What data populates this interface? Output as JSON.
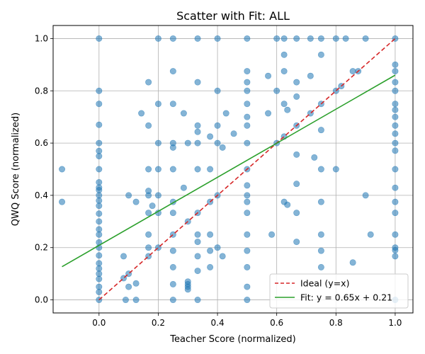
{
  "chart_data": {
    "type": "scatter",
    "title": "Scatter with Fit: ALL",
    "xlabel": "Teacher Score (normalized)",
    "ylabel": "QWQ Score (normalized)",
    "xlim": [
      -0.155,
      1.06
    ],
    "ylim": [
      -0.05,
      1.05
    ],
    "xticks": [
      0.0,
      0.2,
      0.4,
      0.6,
      0.8,
      1.0
    ],
    "yticks": [
      0.0,
      0.2,
      0.4,
      0.6,
      0.8,
      1.0
    ],
    "tick_labels_x": [
      "0.0",
      "0.2",
      "0.4",
      "0.6",
      "0.8",
      "1.0"
    ],
    "tick_labels_y": [
      "0.0",
      "0.2",
      "0.4",
      "0.6",
      "0.8",
      "1.0"
    ],
    "grid": true,
    "legend_position": "bottom-right",
    "point_color": "#1f77b4",
    "series": [
      {
        "name": "points",
        "kind": "scatter",
        "points": [
          [
            0,
            0
          ],
          [
            0,
            0.03
          ],
          [
            0,
            0.05
          ],
          [
            0,
            0.08
          ],
          [
            0,
            0.1
          ],
          [
            0,
            0.12
          ],
          [
            0,
            0.14
          ],
          [
            0,
            0.17
          ],
          [
            0,
            0.2
          ],
          [
            0,
            0.22
          ],
          [
            0,
            0.25
          ],
          [
            0,
            0.27
          ],
          [
            0,
            0.3
          ],
          [
            0,
            0.33
          ],
          [
            0,
            0.36
          ],
          [
            0,
            0.38
          ],
          [
            0,
            0.4
          ],
          [
            0,
            0.42
          ],
          [
            0,
            0.43
          ],
          [
            0,
            0.45
          ],
          [
            0,
            0.5
          ],
          [
            0,
            0.55
          ],
          [
            0,
            0.57
          ],
          [
            0,
            0.6
          ],
          [
            0,
            0.67
          ],
          [
            0,
            0.75
          ],
          [
            0,
            0.8
          ],
          [
            0,
            1
          ],
          [
            -0.125,
            0.375
          ],
          [
            -0.125,
            0.5
          ],
          [
            0.083,
            0.083
          ],
          [
            0.083,
            0.167
          ],
          [
            0.09,
            0
          ],
          [
            0.1,
            0.05
          ],
          [
            0.1,
            0.1
          ],
          [
            0.1,
            0.4
          ],
          [
            0.125,
            0
          ],
          [
            0.125,
            0.063
          ],
          [
            0.125,
            0.375
          ],
          [
            0.143,
            0.714
          ],
          [
            0.167,
            0.167
          ],
          [
            0.167,
            0.2
          ],
          [
            0.167,
            0.25
          ],
          [
            0.167,
            0.333
          ],
          [
            0.167,
            0.4
          ],
          [
            0.167,
            0.417
          ],
          [
            0.167,
            0.5
          ],
          [
            0.167,
            0.667
          ],
          [
            0.167,
            0.833
          ],
          [
            0.18,
            0.36
          ],
          [
            0.2,
            0.2
          ],
          [
            0.2,
            0.333
          ],
          [
            0.2,
            0.4
          ],
          [
            0.2,
            0.5
          ],
          [
            0.2,
            0.6
          ],
          [
            0.2,
            0.75
          ],
          [
            0.2,
            1
          ],
          [
            0.25,
            0
          ],
          [
            0.25,
            0.06
          ],
          [
            0.25,
            0.125
          ],
          [
            0.25,
            0.188
          ],
          [
            0.25,
            0.25
          ],
          [
            0.25,
            0.333
          ],
          [
            0.25,
            0.375
          ],
          [
            0.25,
            0.5
          ],
          [
            0.25,
            0.583
          ],
          [
            0.25,
            0.6
          ],
          [
            0.25,
            0.75
          ],
          [
            0.25,
            0.875
          ],
          [
            0.25,
            1
          ],
          [
            0.286,
            0.429
          ],
          [
            0.286,
            0.714
          ],
          [
            0.3,
            0.04
          ],
          [
            0.3,
            0.05
          ],
          [
            0.3,
            0.06
          ],
          [
            0.3,
            0.07
          ],
          [
            0.3,
            0.3
          ],
          [
            0.3,
            0.6
          ],
          [
            0.333,
            0
          ],
          [
            0.333,
            0.111
          ],
          [
            0.333,
            0.167
          ],
          [
            0.333,
            0.222
          ],
          [
            0.333,
            0.25
          ],
          [
            0.333,
            0.333
          ],
          [
            0.333,
            0.5
          ],
          [
            0.333,
            0.6
          ],
          [
            0.333,
            0.643
          ],
          [
            0.333,
            0.667
          ],
          [
            0.333,
            0.833
          ],
          [
            0.333,
            1
          ],
          [
            0.375,
            0.125
          ],
          [
            0.375,
            0.188
          ],
          [
            0.375,
            0.25
          ],
          [
            0.375,
            0.375
          ],
          [
            0.375,
            0.5
          ],
          [
            0.375,
            0.625
          ],
          [
            0.4,
            0.2
          ],
          [
            0.4,
            0.4
          ],
          [
            0.4,
            0.6
          ],
          [
            0.4,
            0.667
          ],
          [
            0.4,
            0.8
          ],
          [
            0.4,
            1
          ],
          [
            0.417,
            0.167
          ],
          [
            0.417,
            0.583
          ],
          [
            0.429,
            0.714
          ],
          [
            0.455,
            0.636
          ],
          [
            0.5,
            0
          ],
          [
            0.5,
            0.05
          ],
          [
            0.5,
            0.125
          ],
          [
            0.5,
            0.188
          ],
          [
            0.5,
            0.25
          ],
          [
            0.5,
            0.333
          ],
          [
            0.5,
            0.375
          ],
          [
            0.5,
            0.4
          ],
          [
            0.5,
            0.438
          ],
          [
            0.5,
            0.5
          ],
          [
            0.5,
            0.6
          ],
          [
            0.5,
            0.667
          ],
          [
            0.5,
            0.7
          ],
          [
            0.5,
            0.75
          ],
          [
            0.5,
            0.8
          ],
          [
            0.5,
            0.833
          ],
          [
            0.5,
            0.875
          ],
          [
            0.5,
            1
          ],
          [
            0.571,
            0.714
          ],
          [
            0.571,
            0.857
          ],
          [
            0.583,
            0.25
          ],
          [
            0.6,
            0.6
          ],
          [
            0.6,
            0.8
          ],
          [
            0.6,
            1
          ],
          [
            0.625,
            0.375
          ],
          [
            0.625,
            0.625
          ],
          [
            0.625,
            0.75
          ],
          [
            0.625,
            0.875
          ],
          [
            0.625,
            0.938
          ],
          [
            0.625,
            1
          ],
          [
            0.636,
            0.364
          ],
          [
            0.636,
            0.727
          ],
          [
            0.667,
            0.222
          ],
          [
            0.667,
            0.333
          ],
          [
            0.667,
            0.444
          ],
          [
            0.667,
            0.556
          ],
          [
            0.667,
            0.667
          ],
          [
            0.667,
            0.778
          ],
          [
            0.667,
            0.833
          ],
          [
            0.667,
            1
          ],
          [
            0.714,
            0.714
          ],
          [
            0.714,
            0.857
          ],
          [
            0.714,
            1
          ],
          [
            0.727,
            0.545
          ],
          [
            0.75,
            0.125
          ],
          [
            0.75,
            0.188
          ],
          [
            0.75,
            0.25
          ],
          [
            0.75,
            0.375
          ],
          [
            0.75,
            0.5
          ],
          [
            0.75,
            0.65
          ],
          [
            0.75,
            0.75
          ],
          [
            0.75,
            0.938
          ],
          [
            0.75,
            1
          ],
          [
            0.8,
            0.5
          ],
          [
            0.8,
            0.8
          ],
          [
            0.8,
            1
          ],
          [
            0.818,
            0.818
          ],
          [
            0.833,
            1
          ],
          [
            0.857,
            0.143
          ],
          [
            0.857,
            0.875
          ],
          [
            0.875,
            0.875
          ],
          [
            0.9,
            0.4
          ],
          [
            0.9,
            1
          ],
          [
            0.917,
            0.25
          ],
          [
            1,
            0
          ],
          [
            1,
            0.167
          ],
          [
            1,
            0.19
          ],
          [
            1,
            0.2
          ],
          [
            1,
            0.25
          ],
          [
            1,
            0.333
          ],
          [
            1,
            0.375
          ],
          [
            1,
            0.429
          ],
          [
            1,
            0.5
          ],
          [
            1,
            0.571
          ],
          [
            1,
            0.6
          ],
          [
            1,
            0.636
          ],
          [
            1,
            0.667
          ],
          [
            1,
            0.7
          ],
          [
            1,
            0.727
          ],
          [
            1,
            0.75
          ],
          [
            1,
            0.8
          ],
          [
            1,
            0.833
          ],
          [
            1,
            0.875
          ],
          [
            1,
            0.9
          ],
          [
            1,
            1
          ]
        ]
      },
      {
        "name": "Ideal (y=x)",
        "kind": "line",
        "style": "dashed",
        "color": "#d62728",
        "x": [
          0,
          1
        ],
        "y": [
          0,
          1
        ]
      },
      {
        "name": "Fit: y = 0.65x + 0.21",
        "kind": "line",
        "style": "solid",
        "color": "#2ca02c",
        "x": [
          -0.125,
          1
        ],
        "y": [
          0.127,
          0.86
        ]
      }
    ]
  }
}
